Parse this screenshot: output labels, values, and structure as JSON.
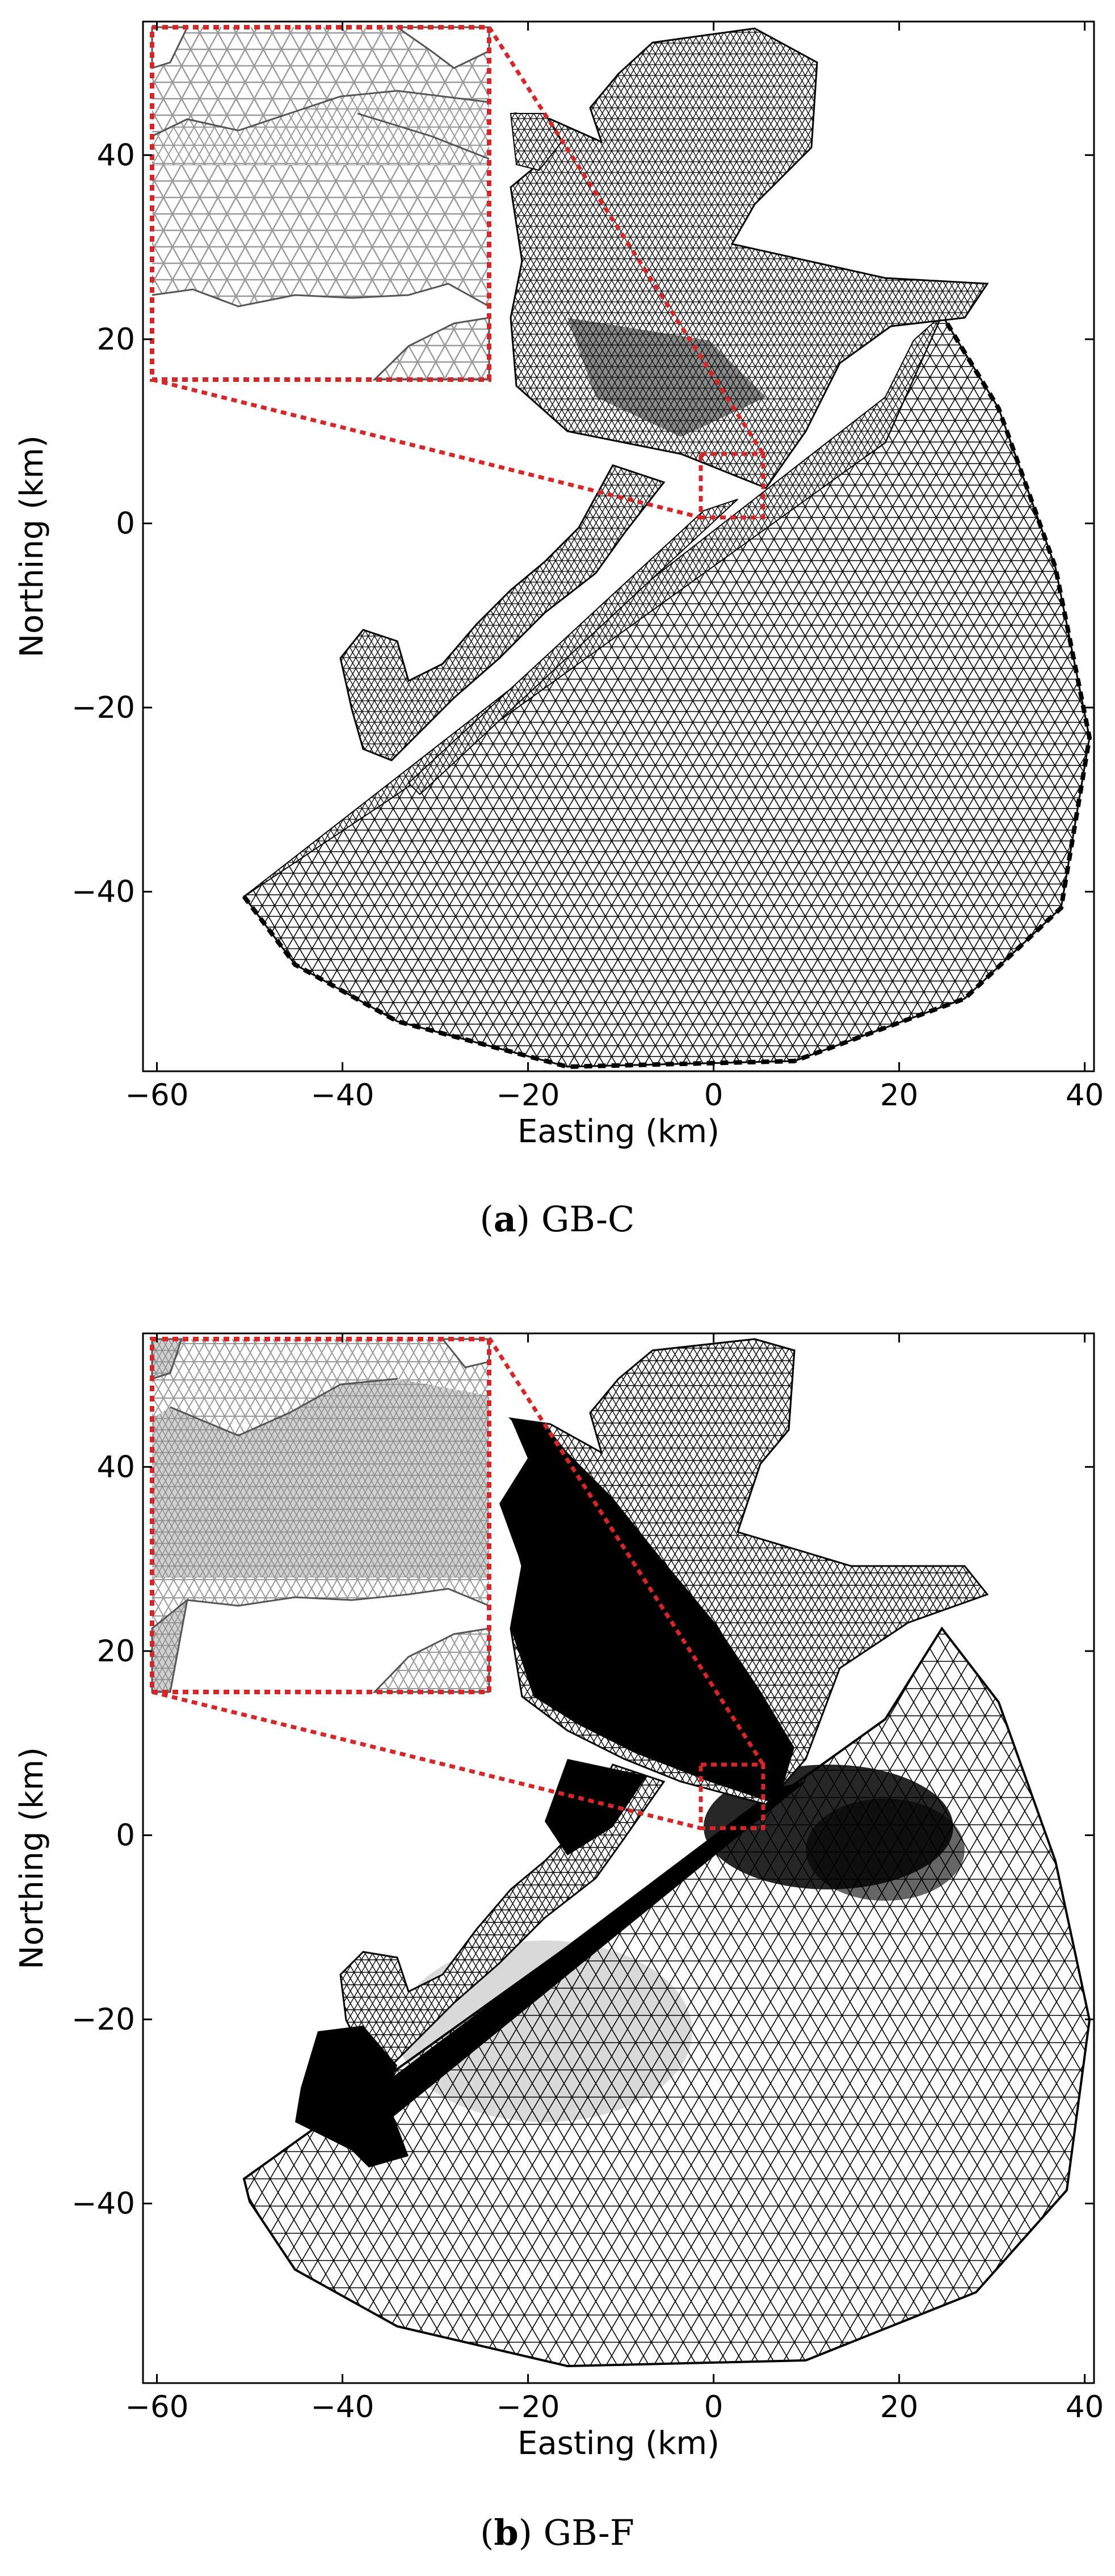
{
  "panels": [
    {
      "id": "a",
      "caption_letter": "a",
      "caption_text": "GB-C",
      "xlabel": "Easting (km)",
      "ylabel": "Northing (km)",
      "xticks": [
        -60,
        -40,
        -20,
        0,
        20,
        40
      ],
      "yticks": [
        -40,
        -20,
        0,
        20,
        40
      ],
      "mesh": "coarse"
    },
    {
      "id": "b",
      "caption_letter": "b",
      "caption_text": "GB-F",
      "xlabel": "Easting (km)",
      "ylabel": "Northing (km)",
      "xticks": [
        -60,
        -40,
        -20,
        0,
        20,
        40
      ],
      "yticks": [
        -40,
        -20,
        0,
        20,
        40
      ],
      "mesh": "fine"
    }
  ],
  "colors": {
    "mesh": "#000000",
    "zoom_box": "#d62728",
    "inset_mesh": "#9a9a9a",
    "inset_fill_fine": "#c4c4c4"
  }
}
